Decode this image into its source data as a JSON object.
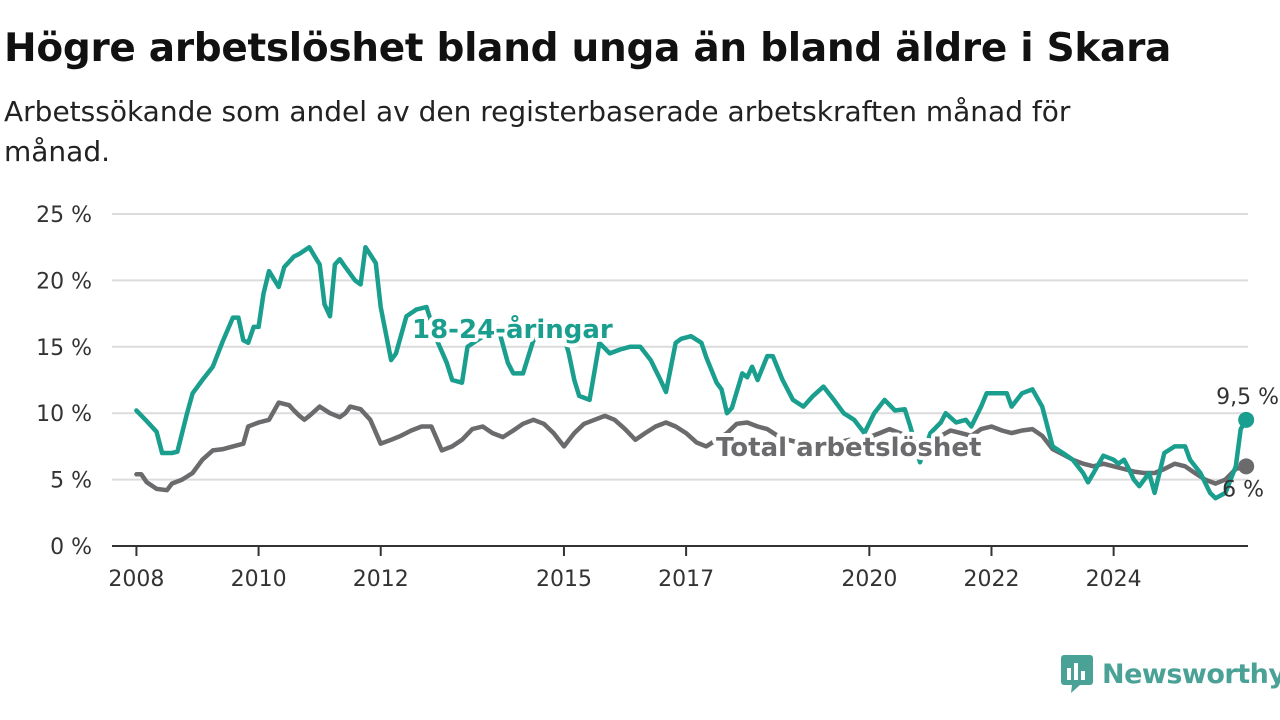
{
  "title": "Högre arbetslöshet bland unga än bland äldre i Skara",
  "subtitle": "Arbetssökande som andel av den registerbaserade arbetskraften månad för månad.",
  "brand": {
    "name": "Newsworthy",
    "icon": "newsworthy-logo-icon",
    "color": "#4aa195"
  },
  "chart_data": {
    "type": "line",
    "title": "Högre arbetslöshet bland unga än bland äldre i Skara",
    "xlabel": "",
    "ylabel": "",
    "ylim": [
      0,
      25
    ],
    "xlim": [
      2007.6,
      2026.2
    ],
    "y_ticks": [
      0,
      5,
      10,
      15,
      20,
      25
    ],
    "y_tick_labels": [
      "0 %",
      "5 %",
      "10 %",
      "15 %",
      "20 %",
      "25 %"
    ],
    "x_ticks": [
      2008,
      2010,
      2012,
      2015,
      2017,
      2020,
      2022,
      2024
    ],
    "x_tick_labels": [
      "2008",
      "2010",
      "2012",
      "2015",
      "2017",
      "2020",
      "2022",
      "2024"
    ],
    "grid": "horizontal",
    "series": [
      {
        "name": "18-24-åringar",
        "color": "#1a9e8e",
        "end_label": "9,5 %",
        "points": [
          [
            2008.0,
            10.2
          ],
          [
            2008.17,
            9.4
          ],
          [
            2008.33,
            8.6
          ],
          [
            2008.42,
            7.0
          ],
          [
            2008.58,
            7.0
          ],
          [
            2008.67,
            7.1
          ],
          [
            2008.83,
            10.0
          ],
          [
            2008.92,
            11.5
          ],
          [
            2009.08,
            12.5
          ],
          [
            2009.25,
            13.5
          ],
          [
            2009.42,
            15.5
          ],
          [
            2009.58,
            17.2
          ],
          [
            2009.67,
            17.2
          ],
          [
            2009.75,
            15.5
          ],
          [
            2009.83,
            15.3
          ],
          [
            2009.92,
            16.5
          ],
          [
            2010.0,
            16.5
          ],
          [
            2010.08,
            19.0
          ],
          [
            2010.17,
            20.7
          ],
          [
            2010.33,
            19.5
          ],
          [
            2010.42,
            21.0
          ],
          [
            2010.58,
            21.8
          ],
          [
            2010.67,
            22.0
          ],
          [
            2010.83,
            22.5
          ],
          [
            2010.92,
            21.8
          ],
          [
            2011.0,
            21.2
          ],
          [
            2011.08,
            18.2
          ],
          [
            2011.17,
            17.3
          ],
          [
            2011.25,
            21.2
          ],
          [
            2011.33,
            21.6
          ],
          [
            2011.42,
            21.0
          ],
          [
            2011.58,
            20.0
          ],
          [
            2011.67,
            19.7
          ],
          [
            2011.75,
            22.5
          ],
          [
            2011.92,
            21.3
          ],
          [
            2012.0,
            18.0
          ],
          [
            2012.17,
            14.0
          ],
          [
            2012.25,
            14.5
          ],
          [
            2012.42,
            17.3
          ],
          [
            2012.58,
            17.8
          ],
          [
            2012.75,
            18.0
          ],
          [
            2012.92,
            15.5
          ],
          [
            2013.08,
            13.8
          ],
          [
            2013.17,
            12.5
          ],
          [
            2013.33,
            12.3
          ],
          [
            2013.42,
            15.0
          ],
          [
            2013.58,
            15.5
          ],
          [
            2013.75,
            16.0
          ],
          [
            2013.92,
            16.5
          ],
          [
            2014.08,
            13.8
          ],
          [
            2014.17,
            13.0
          ],
          [
            2014.33,
            13.0
          ],
          [
            2014.5,
            15.5
          ],
          [
            2014.67,
            16.0
          ],
          [
            2014.83,
            16.5
          ],
          [
            2015.0,
            15.8
          ],
          [
            2015.08,
            14.5
          ],
          [
            2015.17,
            12.5
          ],
          [
            2015.25,
            11.3
          ],
          [
            2015.42,
            11.0
          ],
          [
            2015.58,
            15.3
          ],
          [
            2015.75,
            14.5
          ],
          [
            2015.92,
            14.8
          ],
          [
            2016.08,
            15.0
          ],
          [
            2016.25,
            15.0
          ],
          [
            2016.42,
            14.0
          ],
          [
            2016.58,
            12.5
          ],
          [
            2016.67,
            11.6
          ],
          [
            2016.83,
            15.3
          ],
          [
            2016.92,
            15.6
          ],
          [
            2017.08,
            15.8
          ],
          [
            2017.25,
            15.3
          ],
          [
            2017.33,
            14.2
          ],
          [
            2017.5,
            12.3
          ],
          [
            2017.58,
            11.8
          ],
          [
            2017.67,
            10.0
          ],
          [
            2017.75,
            10.4
          ],
          [
            2017.92,
            13.0
          ],
          [
            2018.0,
            12.7
          ],
          [
            2018.08,
            13.5
          ],
          [
            2018.17,
            12.5
          ],
          [
            2018.33,
            14.3
          ],
          [
            2018.42,
            14.3
          ],
          [
            2018.58,
            12.5
          ],
          [
            2018.75,
            11.0
          ],
          [
            2018.92,
            10.5
          ],
          [
            2019.08,
            11.3
          ],
          [
            2019.25,
            12.0
          ],
          [
            2019.42,
            11.0
          ],
          [
            2019.58,
            10.0
          ],
          [
            2019.75,
            9.5
          ],
          [
            2019.92,
            8.5
          ],
          [
            2020.08,
            10.0
          ],
          [
            2020.25,
            11.0
          ],
          [
            2020.42,
            10.2
          ],
          [
            2020.58,
            10.3
          ],
          [
            2020.67,
            9.0
          ],
          [
            2020.83,
            6.3
          ],
          [
            2021.0,
            8.5
          ],
          [
            2021.17,
            9.3
          ],
          [
            2021.25,
            10.0
          ],
          [
            2021.42,
            9.3
          ],
          [
            2021.58,
            9.5
          ],
          [
            2021.67,
            9.0
          ],
          [
            2021.83,
            10.5
          ],
          [
            2021.92,
            11.5
          ],
          [
            2022.08,
            11.5
          ],
          [
            2022.25,
            11.5
          ],
          [
            2022.33,
            10.5
          ],
          [
            2022.5,
            11.5
          ],
          [
            2022.67,
            11.8
          ],
          [
            2022.83,
            10.5
          ],
          [
            2023.0,
            7.5
          ],
          [
            2023.17,
            7.0
          ],
          [
            2023.33,
            6.5
          ],
          [
            2023.5,
            5.5
          ],
          [
            2023.58,
            4.8
          ],
          [
            2023.67,
            5.5
          ],
          [
            2023.83,
            6.8
          ],
          [
            2024.0,
            6.5
          ],
          [
            2024.08,
            6.2
          ],
          [
            2024.17,
            6.5
          ],
          [
            2024.25,
            5.8
          ],
          [
            2024.33,
            5.0
          ],
          [
            2024.42,
            4.5
          ],
          [
            2024.58,
            5.5
          ],
          [
            2024.67,
            4.0
          ],
          [
            2024.83,
            7.0
          ],
          [
            2025.0,
            7.5
          ],
          [
            2025.17,
            7.5
          ],
          [
            2025.25,
            6.5
          ],
          [
            2025.42,
            5.5
          ],
          [
            2025.58,
            4.0
          ],
          [
            2025.67,
            3.6
          ],
          [
            2025.83,
            4.0
          ],
          [
            2026.0,
            6.0
          ],
          [
            2026.08,
            8.8
          ],
          [
            2026.17,
            9.5
          ]
        ]
      },
      {
        "name": "Total arbetslöshet",
        "color": "#6b6b6e",
        "end_label": "6 %",
        "points": [
          [
            2008.0,
            5.4
          ],
          [
            2008.08,
            5.4
          ],
          [
            2008.17,
            4.8
          ],
          [
            2008.33,
            4.3
          ],
          [
            2008.5,
            4.2
          ],
          [
            2008.58,
            4.7
          ],
          [
            2008.75,
            5.0
          ],
          [
            2008.92,
            5.5
          ],
          [
            2009.08,
            6.5
          ],
          [
            2009.25,
            7.2
          ],
          [
            2009.42,
            7.3
          ],
          [
            2009.58,
            7.5
          ],
          [
            2009.75,
            7.7
          ],
          [
            2009.83,
            9.0
          ],
          [
            2010.0,
            9.3
          ],
          [
            2010.17,
            9.5
          ],
          [
            2010.33,
            10.8
          ],
          [
            2010.5,
            10.6
          ],
          [
            2010.58,
            10.2
          ],
          [
            2010.67,
            9.8
          ],
          [
            2010.75,
            9.5
          ],
          [
            2010.83,
            9.8
          ],
          [
            2011.0,
            10.5
          ],
          [
            2011.17,
            10.0
          ],
          [
            2011.33,
            9.7
          ],
          [
            2011.42,
            10.0
          ],
          [
            2011.5,
            10.5
          ],
          [
            2011.67,
            10.3
          ],
          [
            2011.83,
            9.5
          ],
          [
            2012.0,
            7.7
          ],
          [
            2012.17,
            8.0
          ],
          [
            2012.33,
            8.3
          ],
          [
            2012.5,
            8.7
          ],
          [
            2012.67,
            9.0
          ],
          [
            2012.83,
            9.0
          ],
          [
            2013.0,
            7.2
          ],
          [
            2013.17,
            7.5
          ],
          [
            2013.33,
            8.0
          ],
          [
            2013.5,
            8.8
          ],
          [
            2013.67,
            9.0
          ],
          [
            2013.83,
            8.5
          ],
          [
            2014.0,
            8.2
          ],
          [
            2014.17,
            8.7
          ],
          [
            2014.33,
            9.2
          ],
          [
            2014.5,
            9.5
          ],
          [
            2014.67,
            9.2
          ],
          [
            2014.83,
            8.5
          ],
          [
            2015.0,
            7.5
          ],
          [
            2015.17,
            8.5
          ],
          [
            2015.33,
            9.2
          ],
          [
            2015.5,
            9.5
          ],
          [
            2015.67,
            9.8
          ],
          [
            2015.83,
            9.5
          ],
          [
            2016.0,
            8.8
          ],
          [
            2016.17,
            8.0
          ],
          [
            2016.33,
            8.5
          ],
          [
            2016.5,
            9.0
          ],
          [
            2016.67,
            9.3
          ],
          [
            2016.83,
            9.0
          ],
          [
            2017.0,
            8.5
          ],
          [
            2017.17,
            7.8
          ],
          [
            2017.33,
            7.5
          ],
          [
            2017.5,
            8.0
          ],
          [
            2017.67,
            8.5
          ],
          [
            2017.83,
            9.2
          ],
          [
            2018.0,
            9.3
          ],
          [
            2018.17,
            9.0
          ],
          [
            2018.33,
            8.8
          ],
          [
            2018.5,
            8.3
          ],
          [
            2018.67,
            8.0
          ],
          [
            2018.83,
            7.8
          ],
          [
            2019.0,
            7.5
          ],
          [
            2019.17,
            7.2
          ],
          [
            2019.33,
            7.5
          ],
          [
            2019.5,
            7.8
          ],
          [
            2019.67,
            8.0
          ],
          [
            2019.83,
            7.8
          ],
          [
            2020.0,
            8.2
          ],
          [
            2020.17,
            8.5
          ],
          [
            2020.33,
            8.8
          ],
          [
            2020.5,
            8.5
          ],
          [
            2020.67,
            8.2
          ],
          [
            2020.83,
            7.5
          ],
          [
            2021.0,
            7.8
          ],
          [
            2021.17,
            8.3
          ],
          [
            2021.33,
            8.7
          ],
          [
            2021.5,
            8.5
          ],
          [
            2021.67,
            8.3
          ],
          [
            2021.83,
            8.8
          ],
          [
            2022.0,
            9.0
          ],
          [
            2022.17,
            8.7
          ],
          [
            2022.33,
            8.5
          ],
          [
            2022.5,
            8.7
          ],
          [
            2022.67,
            8.8
          ],
          [
            2022.83,
            8.3
          ],
          [
            2023.0,
            7.3
          ],
          [
            2023.17,
            6.9
          ],
          [
            2023.33,
            6.5
          ],
          [
            2023.5,
            6.2
          ],
          [
            2023.67,
            6.0
          ],
          [
            2023.83,
            6.2
          ],
          [
            2024.0,
            6.0
          ],
          [
            2024.17,
            5.8
          ],
          [
            2024.33,
            5.6
          ],
          [
            2024.5,
            5.5
          ],
          [
            2024.67,
            5.5
          ],
          [
            2024.83,
            5.8
          ],
          [
            2025.0,
            6.2
          ],
          [
            2025.17,
            6.0
          ],
          [
            2025.33,
            5.5
          ],
          [
            2025.5,
            5.0
          ],
          [
            2025.67,
            4.7
          ],
          [
            2025.83,
            5.0
          ],
          [
            2026.0,
            5.8
          ],
          [
            2026.17,
            6.0
          ]
        ]
      }
    ],
    "annotations": [
      {
        "text": "18-24-åringar",
        "series": "18-24-åringar"
      },
      {
        "text": "Total arbetslöshet",
        "series": "Total arbetslöshet"
      }
    ]
  }
}
